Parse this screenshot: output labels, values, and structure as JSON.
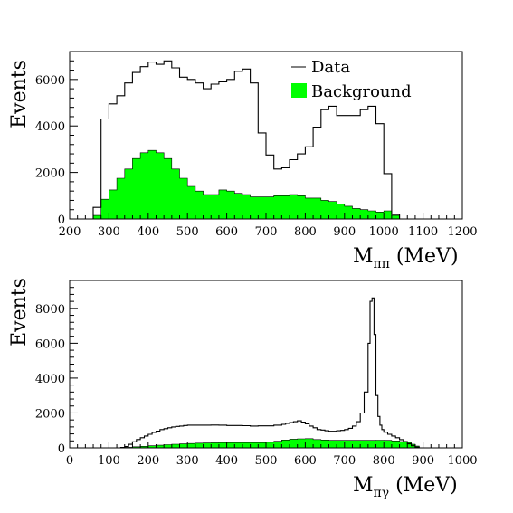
{
  "chart_data": [
    {
      "type": "step-histogram",
      "xlabel_main": "M",
      "xlabel_sub": "ππ",
      "xlabel_unit": " (MeV)",
      "ylabel": "Events",
      "xlim": [
        200,
        1200
      ],
      "ylim": [
        0,
        7200
      ],
      "xticks": [
        200,
        300,
        400,
        500,
        600,
        700,
        800,
        900,
        1000,
        1100,
        1200
      ],
      "yticks": [
        0,
        2000,
        4000,
        6000
      ],
      "legend": {
        "placement": "top-right",
        "entries": [
          "Data",
          "Background"
        ]
      },
      "bin_width": 20,
      "bin_start": 260,
      "series": [
        {
          "name": "Data",
          "style": "step-line",
          "color": "#000000",
          "values": [
            500,
            4300,
            4950,
            5300,
            5850,
            6300,
            6550,
            6750,
            6650,
            6800,
            6500,
            6100,
            6000,
            5850,
            5600,
            5800,
            5900,
            6000,
            6350,
            6450,
            5850,
            3700,
            2750,
            2150,
            2200,
            2550,
            2800,
            3100,
            3950,
            4700,
            4850,
            4450,
            4450,
            4450,
            4700,
            4850,
            4100,
            1950,
            200
          ]
        },
        {
          "name": "Background",
          "style": "filled-step",
          "color": "#00ff00",
          "values": [
            150,
            850,
            1250,
            1750,
            2150,
            2600,
            2850,
            2950,
            2850,
            2600,
            2150,
            1750,
            1400,
            1200,
            1050,
            1050,
            1250,
            1200,
            1100,
            1050,
            950,
            950,
            950,
            1000,
            1000,
            1050,
            1000,
            900,
            900,
            800,
            750,
            650,
            550,
            450,
            400,
            350,
            300,
            350,
            150
          ]
        }
      ]
    },
    {
      "type": "step-histogram",
      "xlabel_main": "M",
      "xlabel_sub": "πγ",
      "xlabel_unit": " (MeV)",
      "ylabel": "Events",
      "xlim": [
        0,
        1000
      ],
      "ylim": [
        0,
        9600
      ],
      "xticks": [
        0,
        100,
        200,
        300,
        400,
        500,
        600,
        700,
        800,
        900,
        1000
      ],
      "yticks": [
        0,
        2000,
        4000,
        6000,
        8000
      ],
      "series": [
        {
          "name": "Data",
          "style": "step-line",
          "color": "#000000",
          "x": [
            0,
            130,
            140,
            150,
            160,
            170,
            180,
            190,
            200,
            210,
            220,
            230,
            240,
            250,
            260,
            270,
            280,
            290,
            300,
            320,
            340,
            360,
            380,
            400,
            420,
            440,
            460,
            480,
            500,
            520,
            540,
            550,
            560,
            570,
            580,
            590,
            600,
            610,
            620,
            630,
            640,
            650,
            660,
            670,
            680,
            690,
            700,
            710,
            720,
            730,
            740,
            750,
            760,
            765,
            770,
            775,
            780,
            785,
            790,
            795,
            800,
            810,
            820,
            830,
            840,
            850,
            860,
            870,
            880,
            890,
            1000
          ],
          "values": [
            0,
            20,
            80,
            200,
            350,
            480,
            580,
            680,
            780,
            880,
            960,
            1050,
            1100,
            1150,
            1200,
            1230,
            1250,
            1280,
            1300,
            1300,
            1300,
            1310,
            1300,
            1280,
            1280,
            1270,
            1250,
            1260,
            1260,
            1300,
            1350,
            1400,
            1450,
            1500,
            1550,
            1480,
            1380,
            1250,
            1150,
            1050,
            1020,
            980,
            950,
            950,
            980,
            1000,
            1050,
            1120,
            1250,
            1500,
            2000,
            3200,
            6000,
            8400,
            8600,
            6500,
            3000,
            1800,
            1300,
            1050,
            900,
            780,
            680,
            580,
            470,
            360,
            230,
            120,
            40,
            0,
            0
          ]
        },
        {
          "name": "Background",
          "style": "filled-step",
          "color": "#00ff00",
          "x": [
            0,
            140,
            160,
            180,
            200,
            220,
            240,
            260,
            280,
            300,
            320,
            340,
            360,
            380,
            400,
            420,
            440,
            460,
            480,
            500,
            520,
            540,
            560,
            580,
            600,
            620,
            640,
            660,
            680,
            700,
            720,
            740,
            760,
            780,
            800,
            820,
            840,
            860,
            870,
            880,
            890,
            1000
          ],
          "values": [
            0,
            30,
            60,
            90,
            120,
            150,
            180,
            210,
            230,
            250,
            270,
            280,
            290,
            300,
            300,
            300,
            300,
            300,
            300,
            320,
            380,
            450,
            500,
            520,
            530,
            480,
            450,
            430,
            430,
            430,
            430,
            430,
            430,
            440,
            430,
            400,
            360,
            300,
            200,
            100,
            0,
            0
          ]
        }
      ]
    }
  ]
}
